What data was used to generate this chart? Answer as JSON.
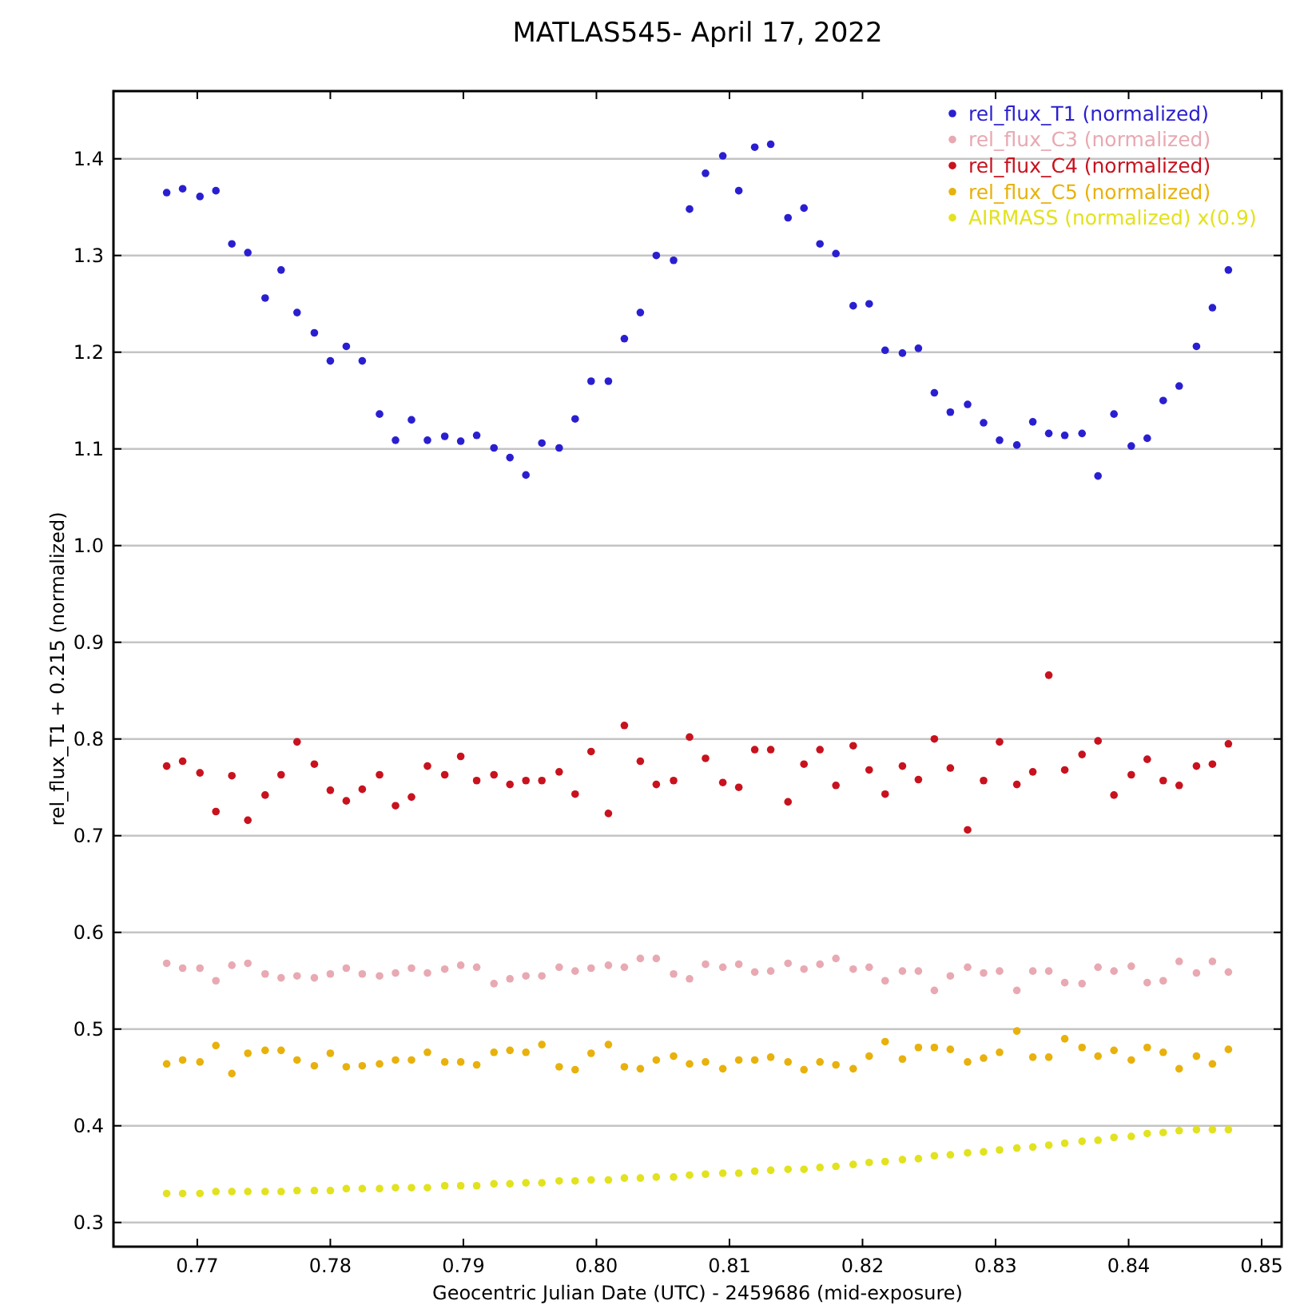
{
  "chart_data": {
    "type": "scatter",
    "title": "MATLAS545- April 17, 2022",
    "xlabel": "Geocentric Julian Date (UTC) - 2459686 (mid-exposure)",
    "ylabel": "rel_flux_T1 + 0.215 (normalized)",
    "xlim": [
      0.7637,
      0.8515
    ],
    "ylim": [
      0.275,
      1.47
    ],
    "xticks": [
      0.77,
      0.78,
      0.79,
      {
        "value": 0.8,
        "label": "0.80"
      },
      0.81,
      0.82,
      0.83,
      0.84,
      0.85
    ],
    "yticks": [
      0.3,
      0.4,
      0.5,
      0.6,
      0.7,
      0.8,
      0.9,
      {
        "value": 1,
        "label": "1.0"
      },
      1.1,
      1.2,
      1.3,
      1.4
    ],
    "grid": "y",
    "legend": "top right",
    "marker": "circle",
    "x": [
      0.7677,
      0.7689,
      0.7702,
      0.7714,
      0.7726,
      0.7738,
      0.7751,
      0.7763,
      0.7775,
      0.7788,
      0.78,
      0.7812,
      0.7824,
      0.7837,
      0.7849,
      0.7861,
      0.7873,
      0.7886,
      0.7898,
      0.791,
      0.7923,
      0.7935,
      0.7947,
      0.7959,
      0.7972,
      0.7984,
      0.7996,
      0.8009,
      0.8021,
      0.8033,
      0.8045,
      0.8058,
      0.807,
      0.8082,
      0.8095,
      0.8107,
      0.8119,
      0.8131,
      0.8144,
      0.8156,
      0.8168,
      0.818,
      0.8193,
      0.8205,
      0.8217,
      0.823,
      0.8242,
      0.8254,
      0.8266,
      0.8279,
      0.8291,
      0.8303,
      0.8316,
      0.8328,
      0.834,
      0.8352,
      0.8365,
      0.8377,
      0.8389,
      0.8402,
      0.8414,
      0.8426,
      0.8438,
      0.8451,
      0.8463,
      0.8475
    ],
    "series": [
      {
        "name": "rel_flux_T1 (normalized)",
        "color": "#2a1fd0",
        "values": [
          1.365,
          1.369,
          1.361,
          1.367,
          1.312,
          1.303,
          1.256,
          1.285,
          1.241,
          1.22,
          1.191,
          1.206,
          1.191,
          1.136,
          1.109,
          1.13,
          1.109,
          1.113,
          1.108,
          1.114,
          1.101,
          1.091,
          1.073,
          1.106,
          1.101,
          1.131,
          1.17,
          1.17,
          1.214,
          1.241,
          1.3,
          1.295,
          1.348,
          1.385,
          1.403,
          1.367,
          1.412,
          1.415,
          1.339,
          1.349,
          1.312,
          1.302,
          1.248,
          1.25,
          1.202,
          1.199,
          1.204,
          1.158,
          1.138,
          1.146,
          1.127,
          1.109,
          1.104,
          1.128,
          1.116,
          1.114,
          1.116,
          1.072,
          1.136,
          1.103,
          1.111,
          1.15,
          1.165,
          1.206,
          1.246,
          1.285
        ]
      },
      {
        "name": "rel_flux_C3 (normalized)",
        "color": "#e8a9b2",
        "values": [
          0.568,
          0.563,
          0.563,
          0.55,
          0.566,
          0.568,
          0.557,
          0.553,
          0.555,
          0.553,
          0.557,
          0.563,
          0.557,
          0.555,
          0.558,
          0.563,
          0.558,
          0.562,
          0.566,
          0.564,
          0.547,
          0.552,
          0.555,
          0.555,
          0.564,
          0.56,
          0.563,
          0.566,
          0.564,
          0.573,
          0.573,
          0.557,
          0.552,
          0.567,
          0.564,
          0.567,
          0.559,
          0.56,
          0.568,
          0.562,
          0.567,
          0.573,
          0.562,
          0.564,
          0.55,
          0.56,
          0.56,
          0.54,
          0.555,
          0.564,
          0.558,
          0.56,
          0.54,
          0.56,
          0.56,
          0.548,
          0.547,
          0.564,
          0.56,
          0.565,
          0.548,
          0.55,
          0.57,
          0.558,
          0.57,
          0.559
        ]
      },
      {
        "name": "rel_flux_C4 (normalized)",
        "color": "#c8121e",
        "values": [
          0.772,
          0.777,
          0.765,
          0.725,
          0.762,
          0.716,
          0.742,
          0.763,
          0.797,
          0.774,
          0.747,
          0.736,
          0.748,
          0.763,
          0.731,
          0.74,
          0.772,
          0.763,
          0.782,
          0.757,
          0.763,
          0.753,
          0.757,
          0.757,
          0.766,
          0.743,
          0.787,
          0.723,
          0.814,
          0.777,
          0.753,
          0.757,
          0.802,
          0.78,
          0.755,
          0.75,
          0.789,
          0.789,
          0.735,
          0.774,
          0.789,
          0.752,
          0.793,
          0.768,
          0.743,
          0.772,
          0.758,
          0.8,
          0.77,
          0.706,
          0.757,
          0.797,
          0.753,
          0.766,
          0.866,
          0.768,
          0.784,
          0.798,
          0.742,
          0.763,
          0.779,
          0.757,
          0.752,
          0.772,
          0.774,
          0.795
        ]
      },
      {
        "name": "rel_flux_C5 (normalized)",
        "color": "#e8b10c",
        "values": [
          0.464,
          0.468,
          0.466,
          0.483,
          0.454,
          0.475,
          0.478,
          0.478,
          0.468,
          0.462,
          0.475,
          0.461,
          0.462,
          0.464,
          0.468,
          0.468,
          0.476,
          0.466,
          0.466,
          0.463,
          0.476,
          0.478,
          0.476,
          0.484,
          0.461,
          0.458,
          0.475,
          0.484,
          0.461,
          0.459,
          0.468,
          0.472,
          0.464,
          0.466,
          0.459,
          0.468,
          0.468,
          0.471,
          0.466,
          0.458,
          0.466,
          0.463,
          0.459,
          0.472,
          0.487,
          0.469,
          0.481,
          0.481,
          0.479,
          0.466,
          0.47,
          0.476,
          0.498,
          0.471,
          0.471,
          0.49,
          0.481,
          0.472,
          0.478,
          0.468,
          0.481,
          0.476,
          0.459,
          0.472,
          0.464,
          0.479
        ]
      },
      {
        "name": "AIRMASS (normalized) x(0.9)",
        "color": "#e2e21e",
        "values": [
          0.33,
          0.33,
          0.33,
          0.332,
          0.332,
          0.332,
          0.332,
          0.332,
          0.333,
          0.333,
          0.333,
          0.335,
          0.335,
          0.335,
          0.336,
          0.336,
          0.336,
          0.338,
          0.338,
          0.338,
          0.34,
          0.34,
          0.341,
          0.341,
          0.343,
          0.343,
          0.344,
          0.344,
          0.346,
          0.346,
          0.347,
          0.347,
          0.349,
          0.35,
          0.351,
          0.351,
          0.353,
          0.354,
          0.355,
          0.355,
          0.357,
          0.358,
          0.36,
          0.362,
          0.363,
          0.365,
          0.366,
          0.369,
          0.37,
          0.372,
          0.373,
          0.375,
          0.377,
          0.378,
          0.38,
          0.382,
          0.384,
          0.385,
          0.388,
          0.389,
          0.392,
          0.393,
          0.395,
          0.396,
          0.396,
          0.396
        ]
      }
    ]
  }
}
